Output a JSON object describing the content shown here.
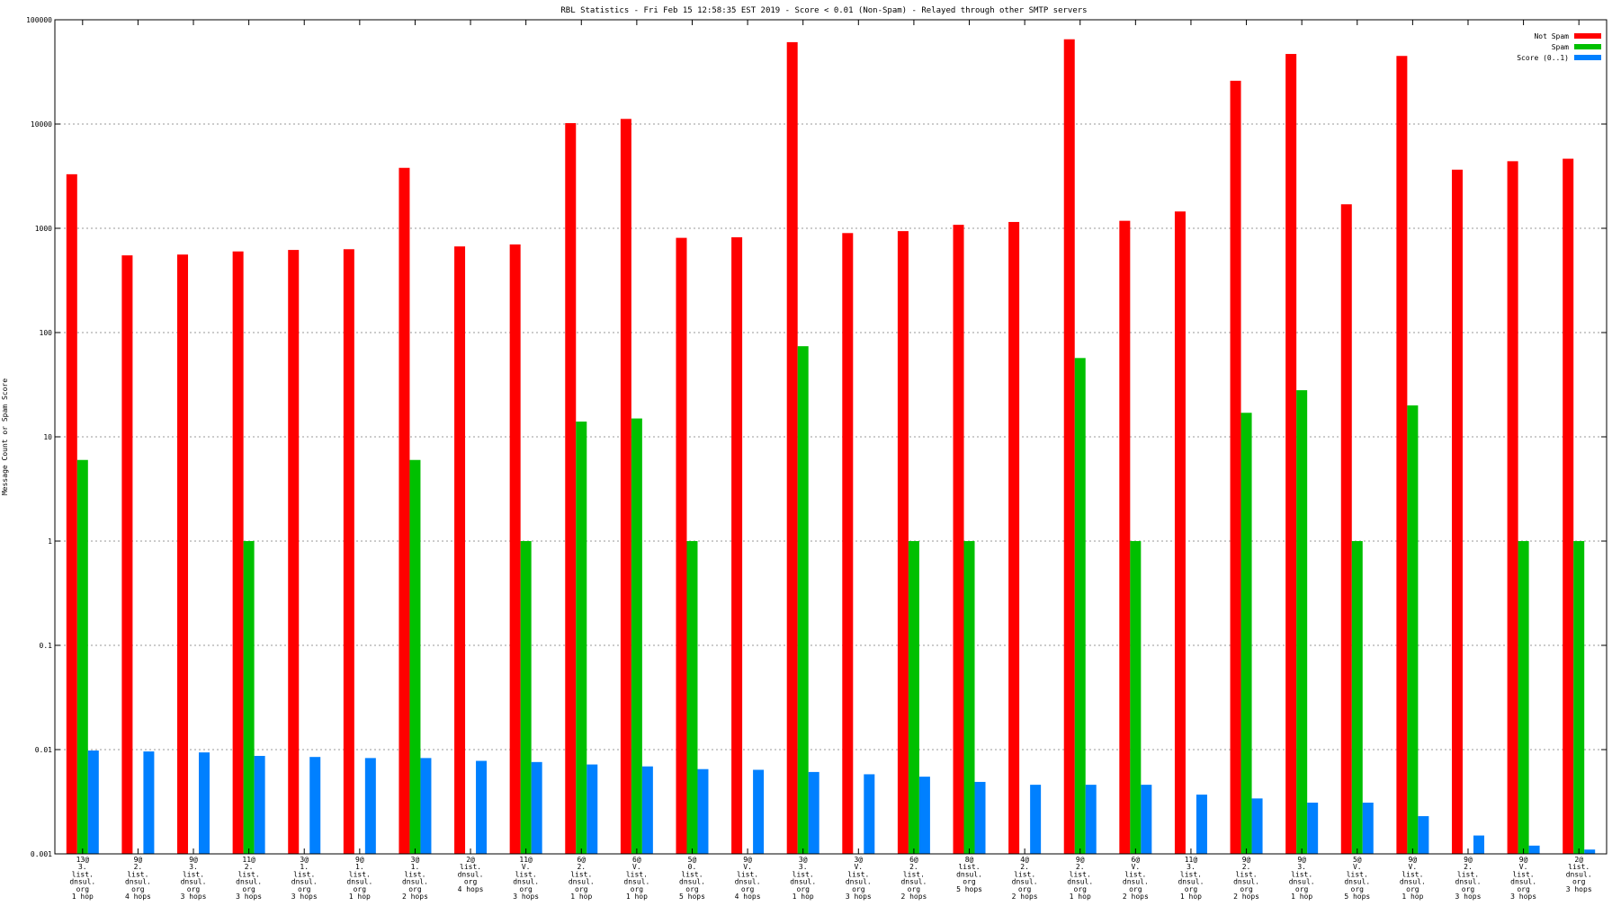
{
  "chart_data": {
    "type": "bar",
    "title": "RBL Statistics - Fri Feb 15 12:58:35 EST 2019 - Score < 0.01 (Non-Spam) - Relayed through other SMTP servers",
    "xlabel": "",
    "ylabel": "Message Count or Spam Score",
    "yscale": "log",
    "ylim": [
      0.001,
      100000
    ],
    "yticks": [
      {
        "value": 100000,
        "label": "100000"
      },
      {
        "value": 10000,
        "label": "10000"
      },
      {
        "value": 1000,
        "label": "1000"
      },
      {
        "value": 100,
        "label": "100"
      },
      {
        "value": 10,
        "label": "10"
      },
      {
        "value": 1,
        "label": "1"
      },
      {
        "value": 0.1,
        "label": "0.1"
      },
      {
        "value": 0.01,
        "label": "0.01"
      },
      {
        "value": 0.001,
        "label": "0.001"
      }
    ],
    "grid": true,
    "legend_position": "top-right",
    "categories": [
      [
        "13@",
        "3.",
        "list.",
        "dnsul.",
        "org",
        "1 hop"
      ],
      [
        "9@",
        "2.",
        "list.",
        "dnsul.",
        "org",
        "4 hops"
      ],
      [
        "9@",
        "3.",
        "list.",
        "dnsul.",
        "org",
        "3 hops"
      ],
      [
        "11@",
        "2.",
        "list.",
        "dnsul.",
        "org",
        "3 hops"
      ],
      [
        "3@",
        "1.",
        "list.",
        "dnsul.",
        "org",
        "3 hops"
      ],
      [
        "9@",
        "1.",
        "list.",
        "dnsul.",
        "org",
        "1 hop"
      ],
      [
        "3@",
        "1.",
        "list.",
        "dnsul.",
        "org",
        "2 hops"
      ],
      [
        "2@",
        "list.",
        "dnsul.",
        "org",
        "4 hops"
      ],
      [
        "11@",
        "V.",
        "list.",
        "dnsul.",
        "org",
        "3 hops"
      ],
      [
        "6@",
        "2.",
        "list.",
        "dnsul.",
        "org",
        "1 hop"
      ],
      [
        "6@",
        "V.",
        "list.",
        "dnsul.",
        "org",
        "1 hop"
      ],
      [
        "5@",
        "0.",
        "list.",
        "dnsul.",
        "org",
        "5 hops"
      ],
      [
        "9@",
        "V.",
        "list.",
        "dnsul.",
        "org",
        "4 hops"
      ],
      [
        "3@",
        "3.",
        "list.",
        "dnsul.",
        "org",
        "1 hop"
      ],
      [
        "3@",
        "V.",
        "list.",
        "dnsul.",
        "org",
        "3 hops"
      ],
      [
        "6@",
        "2.",
        "list.",
        "dnsul.",
        "org",
        "2 hops"
      ],
      [
        "8@",
        "list.",
        "dnsul.",
        "org",
        "5 hops"
      ],
      [
        "4@",
        "2.",
        "list.",
        "dnsul.",
        "org",
        "2 hops"
      ],
      [
        "9@",
        "2.",
        "list.",
        "dnsul.",
        "org",
        "1 hop"
      ],
      [
        "6@",
        "V.",
        "list.",
        "dnsul.",
        "org",
        "2 hops"
      ],
      [
        "11@",
        "3.",
        "list.",
        "dnsul.",
        "org",
        "1 hop"
      ],
      [
        "9@",
        "2.",
        "list.",
        "dnsul.",
        "org",
        "2 hops"
      ],
      [
        "9@",
        "3.",
        "list.",
        "dnsul.",
        "org",
        "1 hop"
      ],
      [
        "5@",
        "V.",
        "list.",
        "dnsul.",
        "org",
        "5 hops"
      ],
      [
        "9@",
        "V.",
        "list.",
        "dnsul.",
        "org",
        "1 hop"
      ],
      [
        "9@",
        "2.",
        "list.",
        "dnsul.",
        "org",
        "3 hops"
      ],
      [
        "9@",
        "V.",
        "list.",
        "dnsul.",
        "org",
        "3 hops"
      ],
      [
        "2@",
        "list.",
        "dnsul.",
        "org",
        "3 hops"
      ]
    ],
    "series": [
      {
        "name": "Not Spam",
        "color": "#ff0000",
        "values": [
          3300,
          550,
          560,
          600,
          620,
          630,
          3800,
          670,
          700,
          10200,
          11200,
          810,
          820,
          61000,
          900,
          940,
          1080,
          1150,
          65000,
          1180,
          1450,
          26000,
          47000,
          1700,
          45000,
          3650,
          4400,
          4650
        ]
      },
      {
        "name": "Spam",
        "color": "#00c000",
        "values": [
          6,
          null,
          null,
          1,
          null,
          null,
          6,
          null,
          1,
          14,
          15,
          1,
          null,
          74,
          null,
          1,
          1,
          null,
          57,
          1,
          null,
          17,
          28,
          1,
          20,
          null,
          1,
          1
        ]
      },
      {
        "name": "Score (0..1)",
        "color": "#0080ff",
        "values": [
          0.0098,
          0.0096,
          0.0094,
          0.0087,
          0.0085,
          0.0083,
          0.0083,
          0.0078,
          0.0076,
          0.0072,
          0.0069,
          0.0065,
          0.0064,
          0.0061,
          0.0058,
          0.0055,
          0.0049,
          0.0046,
          0.0046,
          0.0046,
          0.0037,
          0.0034,
          0.0031,
          0.0031,
          0.0023,
          0.0015,
          0.0012,
          0.0011
        ]
      }
    ]
  }
}
